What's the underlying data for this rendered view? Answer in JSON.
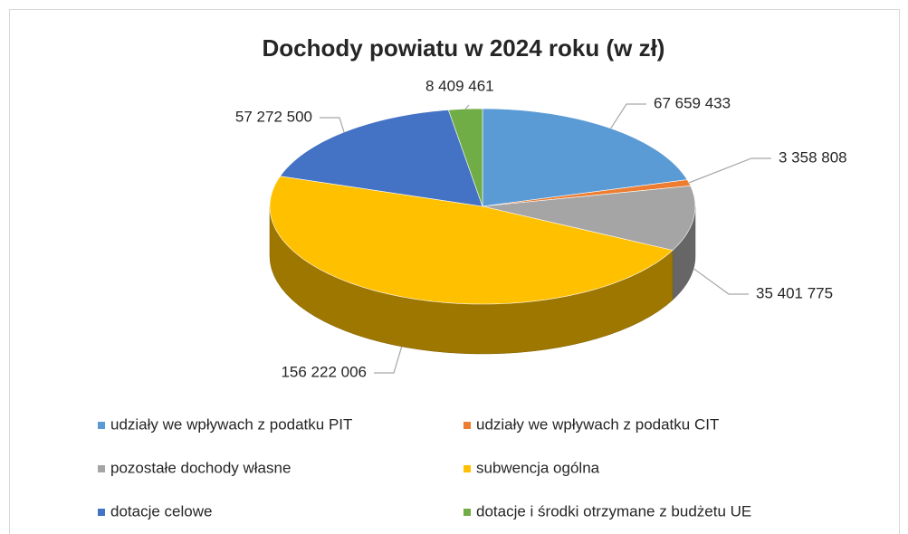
{
  "chart_data": {
    "type": "pie",
    "title": "Dochody powiatu w 2024 roku (w zł)",
    "categories": [
      "udziały we wpływach z podatku PIT",
      "udziały we wpływach z podatku CIT",
      "pozostałe dochody własne",
      "subwencja ogólna",
      "dotacje celowe",
      "dotacje i środki otrzymane z budżetu UE"
    ],
    "values": [
      67659433,
      3358808,
      35401775,
      156222006,
      57272500,
      8409461
    ],
    "value_labels": [
      "67 659 433",
      "3 358 808",
      "35 401 775",
      "156 222 006",
      "57 272 500",
      "8 409 461"
    ],
    "colors": [
      "#5b9bd5",
      "#ed7d31",
      "#a5a5a5",
      "#ffc000",
      "#4472c4",
      "#70ad47"
    ],
    "legend": "bottom"
  }
}
